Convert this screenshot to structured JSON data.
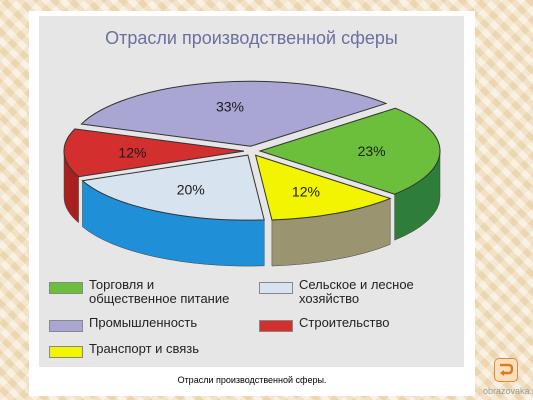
{
  "chart_data": {
    "type": "pie",
    "title": "Отрасли производственной сферы",
    "labels": [
      "Промышленность",
      "Торговля и общественное питание",
      "Транспорт и связь",
      "Сельское и лесное хозяйство",
      "Строительство"
    ],
    "values": [
      33,
      23,
      12,
      20,
      12
    ],
    "value_labels": [
      "33%",
      "23%",
      "12%",
      "20%",
      "12%"
    ],
    "colors": [
      "#a9a6d3",
      "#6cbf3a",
      "#f3f400",
      "#d7e3ee",
      "#d32f2f"
    ],
    "side_colors": [
      "#7d7aa6",
      "#2f7d3a",
      "#9a9570",
      "#1f8fd8",
      "#a82020"
    ],
    "legend_position": "bottom"
  },
  "legend": [
    {
      "label": "Торговля и\nобщественное питание",
      "color": "#6cbf3a"
    },
    {
      "label": "Сельское и лесное\nхозяйство",
      "color": "#d7e3ee"
    },
    {
      "label": "Промышленность",
      "color": "#a9a6d3"
    },
    {
      "label": "Строительство",
      "color": "#d32f2f"
    },
    {
      "label": "Транспорт и связь",
      "color": "#f3f400"
    }
  ],
  "caption": "Отрасли производственной сферы.",
  "watermark": "obrazovaka.ru",
  "nav": {
    "icon": "return-arrow-icon"
  }
}
